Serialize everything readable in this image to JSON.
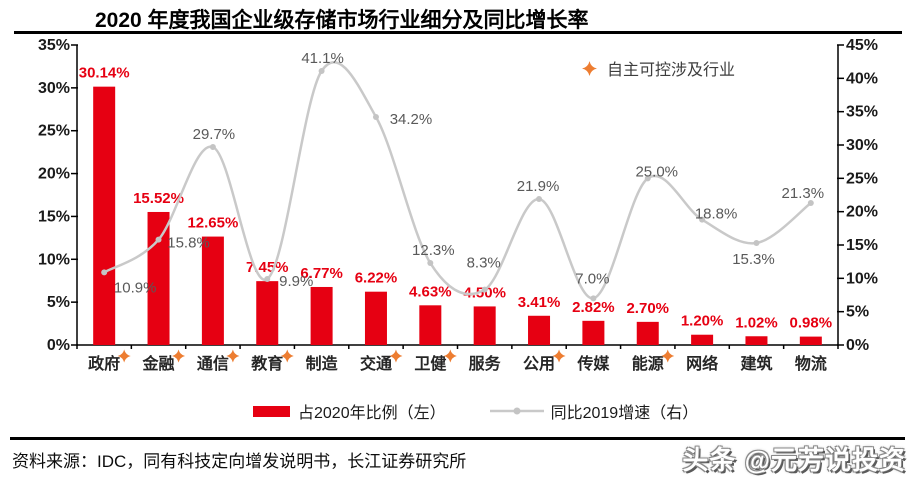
{
  "header": {
    "title": "2020 年度我国企业级存储市场行业细分及同比增长率"
  },
  "legend": {
    "star": "自主可控涉及行业",
    "bar": "占2020年比例（左）",
    "line": "同比2019增速（右）"
  },
  "footer": {
    "source": "资料来源：IDC，同有科技定向增发说明书，长江证券研究所",
    "watermark": "头条 @元芳说投资"
  },
  "colors": {
    "bar": "#e60012",
    "bar_label": "#e60012",
    "line": "#c9c9c9",
    "line_marker": "#c4c4c4",
    "line_label": "#595959",
    "star": "#ed7d31",
    "axis": "#000000",
    "axis_text": "#1a1a1a"
  },
  "chart_data": {
    "type": "combo-bar-line",
    "title": "2020 年度我国企业级存储市场行业细分及同比增长率",
    "categories": [
      "政府",
      "金融",
      "通信",
      "教育",
      "制造",
      "交通",
      "卫健",
      "服务",
      "公用",
      "传媒",
      "能源",
      "网络",
      "建筑",
      "物流"
    ],
    "starred_categories": [
      "政府",
      "金融",
      "通信",
      "教育",
      "交通",
      "卫健",
      "公用",
      "能源"
    ],
    "starred_legend": "自主可控涉及行业",
    "series": [
      {
        "name": "占2020年比例（左）",
        "type": "bar",
        "axis": "left",
        "unit": "%",
        "values": [
          30.14,
          15.52,
          12.65,
          7.45,
          6.77,
          6.22,
          4.63,
          4.5,
          3.41,
          2.82,
          2.7,
          1.2,
          1.02,
          0.98
        ],
        "data_labels": [
          "30.14%",
          "15.52%",
          "12.65%",
          "7.45%",
          "6.77%",
          "6.22%",
          "4.63%",
          "4.50%",
          "3.41%",
          "2.82%",
          "2.70%",
          "1.20%",
          "1.02%",
          "0.98%"
        ]
      },
      {
        "name": "同比2019增速（右）",
        "type": "line",
        "axis": "right",
        "unit": "%",
        "values": [
          10.9,
          15.8,
          29.7,
          9.9,
          41.1,
          34.2,
          12.3,
          8.3,
          21.9,
          7.0,
          25.0,
          18.8,
          15.3,
          21.3
        ],
        "data_labels": [
          "10.9%",
          "15.8%",
          "29.7%",
          "9.9%",
          "41.1%",
          "34.2%",
          "12.3%",
          "8.3%",
          "21.9%",
          "7.0%",
          "25.0%",
          "18.8%",
          "15.3%",
          "21.3%"
        ]
      }
    ],
    "left_axis": {
      "min": 0,
      "max": 35,
      "step": 5,
      "tick_labels": [
        "0%",
        "5%",
        "10%",
        "15%",
        "20%",
        "25%",
        "30%",
        "35%"
      ]
    },
    "right_axis": {
      "min": 0,
      "max": 45,
      "step": 5,
      "tick_labels": [
        "0%",
        "5%",
        "10%",
        "15%",
        "20%",
        "25%",
        "30%",
        "35%",
        "40%",
        "45%"
      ]
    },
    "grid": false,
    "legend_position": "bottom"
  }
}
